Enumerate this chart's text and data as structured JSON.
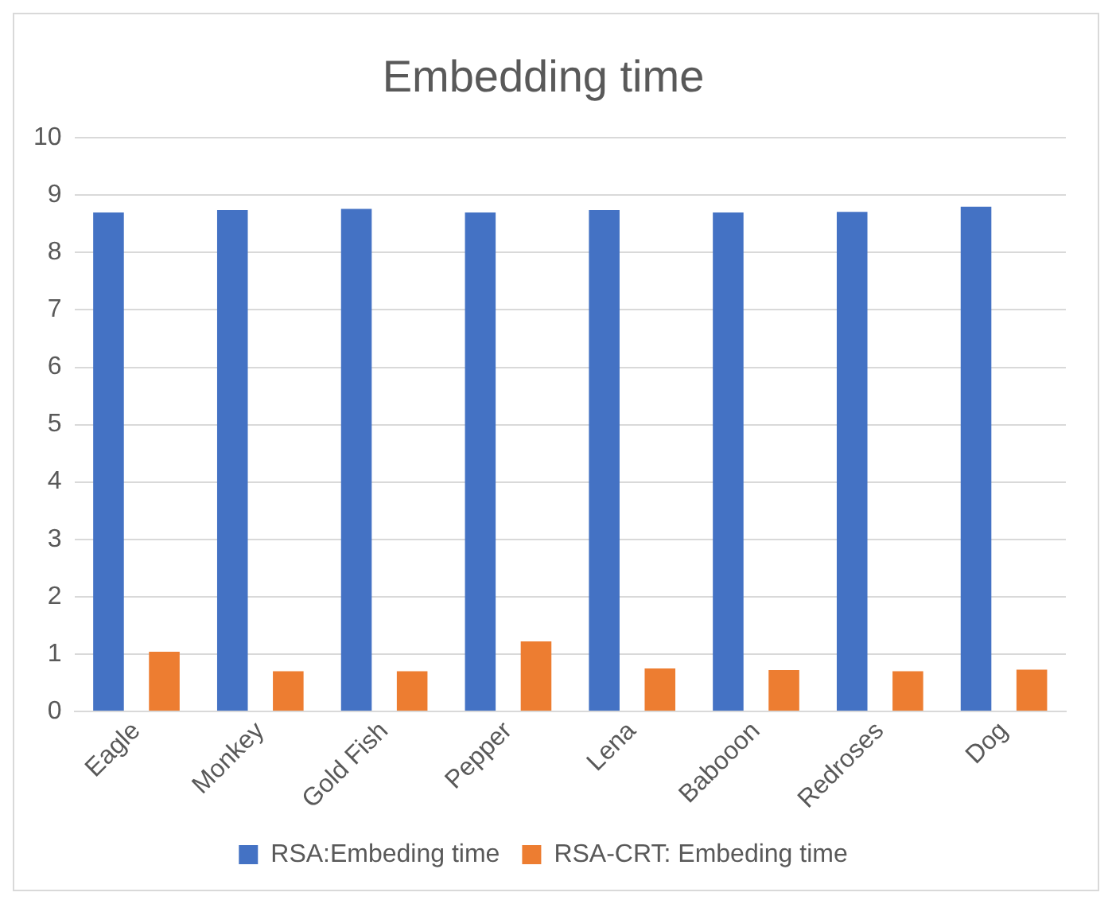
{
  "chart_data": {
    "type": "bar",
    "title": "Embedding time",
    "categories": [
      "Eagle",
      "Monkey",
      "Gold Fish",
      "Pepper",
      "Lena",
      "Babooon",
      "Redroses",
      "Dog"
    ],
    "series": [
      {
        "name": "RSA:Embeding time",
        "color": "#4472c4",
        "values": [
          8.7,
          8.74,
          8.76,
          8.7,
          8.74,
          8.7,
          8.71,
          8.8
        ]
      },
      {
        "name": "RSA-CRT: Embeding time",
        "color": "#ed7d31",
        "values": [
          1.04,
          0.7,
          0.7,
          1.22,
          0.75,
          0.72,
          0.7,
          0.73
        ]
      }
    ],
    "ylim": [
      0,
      10
    ],
    "yticks": [
      0,
      1,
      2,
      3,
      4,
      5,
      6,
      7,
      8,
      9,
      10
    ],
    "grid": "y",
    "legend": "bottom"
  }
}
